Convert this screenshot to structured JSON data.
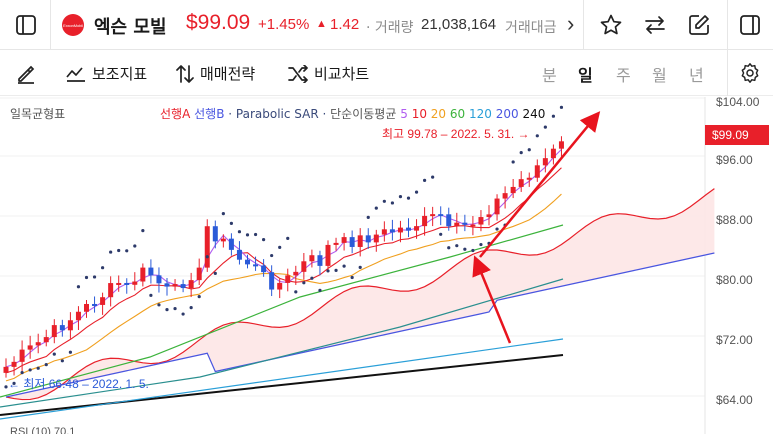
{
  "header": {
    "stock_name": "엑슨 모빌",
    "logo_text": "ExxonMobil",
    "price": "$99.09",
    "change_pct": "+1.45%",
    "change_arrow": "▲",
    "change_abs": "1.42",
    "volume_label": "· 거래량",
    "volume_value": "21,038,164",
    "amount_label": "거래대금",
    "more_arrow": "›"
  },
  "toolbar": {
    "drawing_label": "",
    "aux_indicator_label": "보조지표",
    "strategy_label": "매매전략",
    "compare_label": "비교차트",
    "periods": [
      "분",
      "일",
      "주",
      "월",
      "년"
    ],
    "active_period": "일"
  },
  "chart": {
    "indicator_name": "일목균형표",
    "legend_senkou_a": "선행A",
    "legend_senkou_b": "선행B",
    "legend_psar": "· Parabolic SAR ·",
    "legend_ma_label": "단순이동평균",
    "ma_periods": [
      "5",
      "10",
      "20",
      "60",
      "120",
      "200",
      "240"
    ],
    "ma_colors": [
      "#b05cf0",
      "#e8202a",
      "#f0a020",
      "#3cb33c",
      "#2a9fd8",
      "#4a56e0",
      "#111111"
    ],
    "high_label": "최고 99.78 – 2022. 5. 31. →",
    "low_label": "← 최저 66.48 – 2022. 1. 5.",
    "current_price_tag": "$99.09",
    "y_ticks": [
      "$104.00",
      "$96.00",
      "$88.00",
      "$80.00",
      "$72.00",
      "$64.00"
    ],
    "rsi_label": "RSI (10) 70.1",
    "colors": {
      "up": "#e8202a",
      "down": "#2a5ad8",
      "cloud_fill": "#fde6e6"
    }
  }
}
